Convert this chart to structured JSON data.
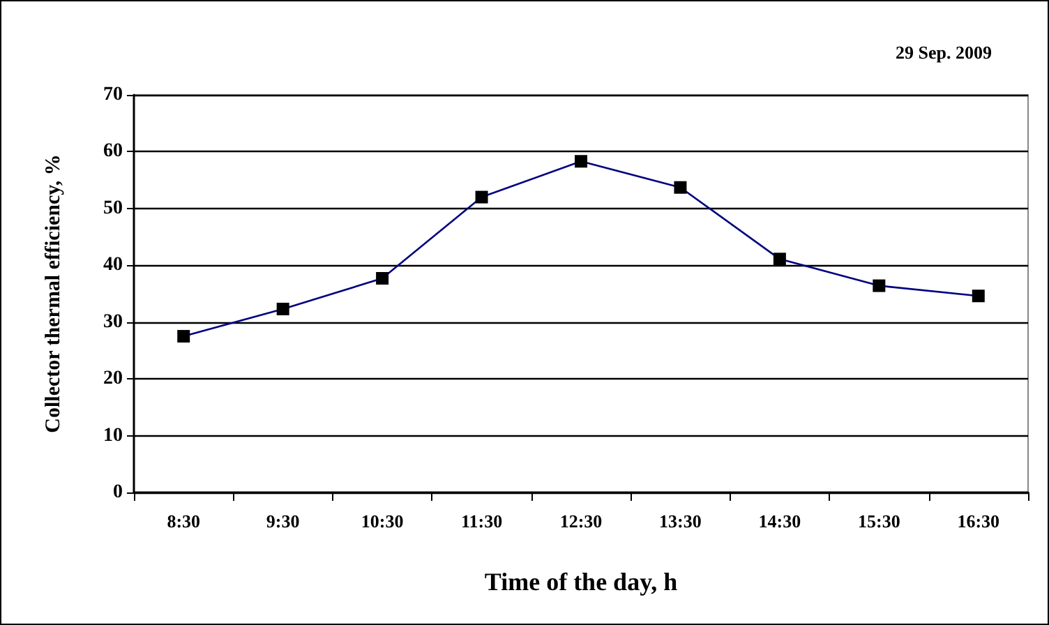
{
  "chart_data": {
    "type": "line",
    "annotations": [
      "29 Sep. 2009"
    ],
    "xlabel": "Time of the day, h",
    "ylabel": "Collector thermal efficiency, %",
    "categories": [
      "8:30",
      "9:30",
      "10:30",
      "11:30",
      "12:30",
      "13:30",
      "14:30",
      "15:30",
      "16:30"
    ],
    "series": [
      {
        "color": "#000080",
        "values": [
          27.5,
          32.3,
          37.7,
          52.0,
          58.3,
          53.7,
          41.1,
          36.4,
          34.6
        ]
      }
    ],
    "ylim": [
      0,
      70
    ],
    "yticks": [
      0,
      10,
      20,
      30,
      40,
      50,
      60,
      70
    ],
    "grid": "y",
    "marker": "square",
    "line_style": "solid"
  }
}
